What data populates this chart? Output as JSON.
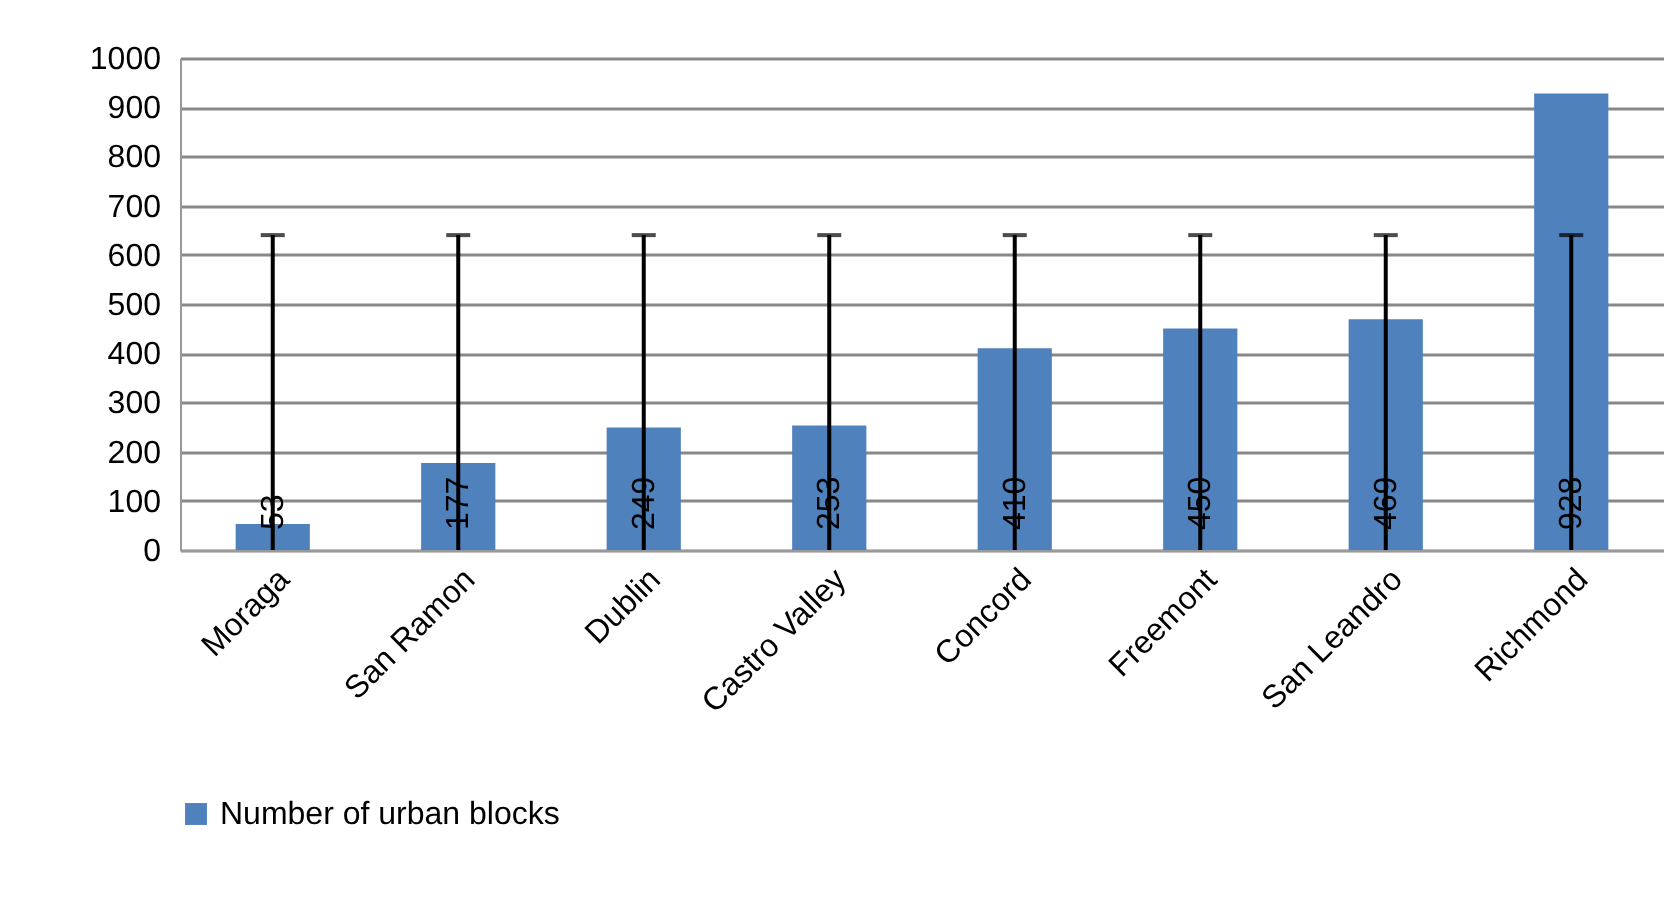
{
  "chart_data": {
    "type": "bar",
    "categories": [
      "Moraga",
      "San Ramon",
      "Dublin",
      "Castro Valley",
      "Concord",
      "Freemont",
      "San Leandro",
      "Richmond"
    ],
    "series": [
      {
        "name": "Number of urban blocks",
        "color": "#4f81bd",
        "values": [
          53,
          177,
          249,
          253,
          410,
          450,
          469,
          928
        ],
        "errors": [
          [
            0,
            640
          ],
          [
            0,
            640
          ],
          [
            0,
            640
          ],
          [
            0,
            640
          ],
          [
            0,
            640
          ],
          [
            0,
            640
          ],
          [
            0,
            640
          ],
          [
            0,
            640
          ]
        ]
      }
    ],
    "ylim": [
      0,
      1000
    ],
    "yticks": [
      0,
      100,
      200,
      300,
      400,
      500,
      600,
      700,
      800,
      900,
      1000
    ],
    "grid": "y",
    "legend": "bottom",
    "data_labels": true
  }
}
